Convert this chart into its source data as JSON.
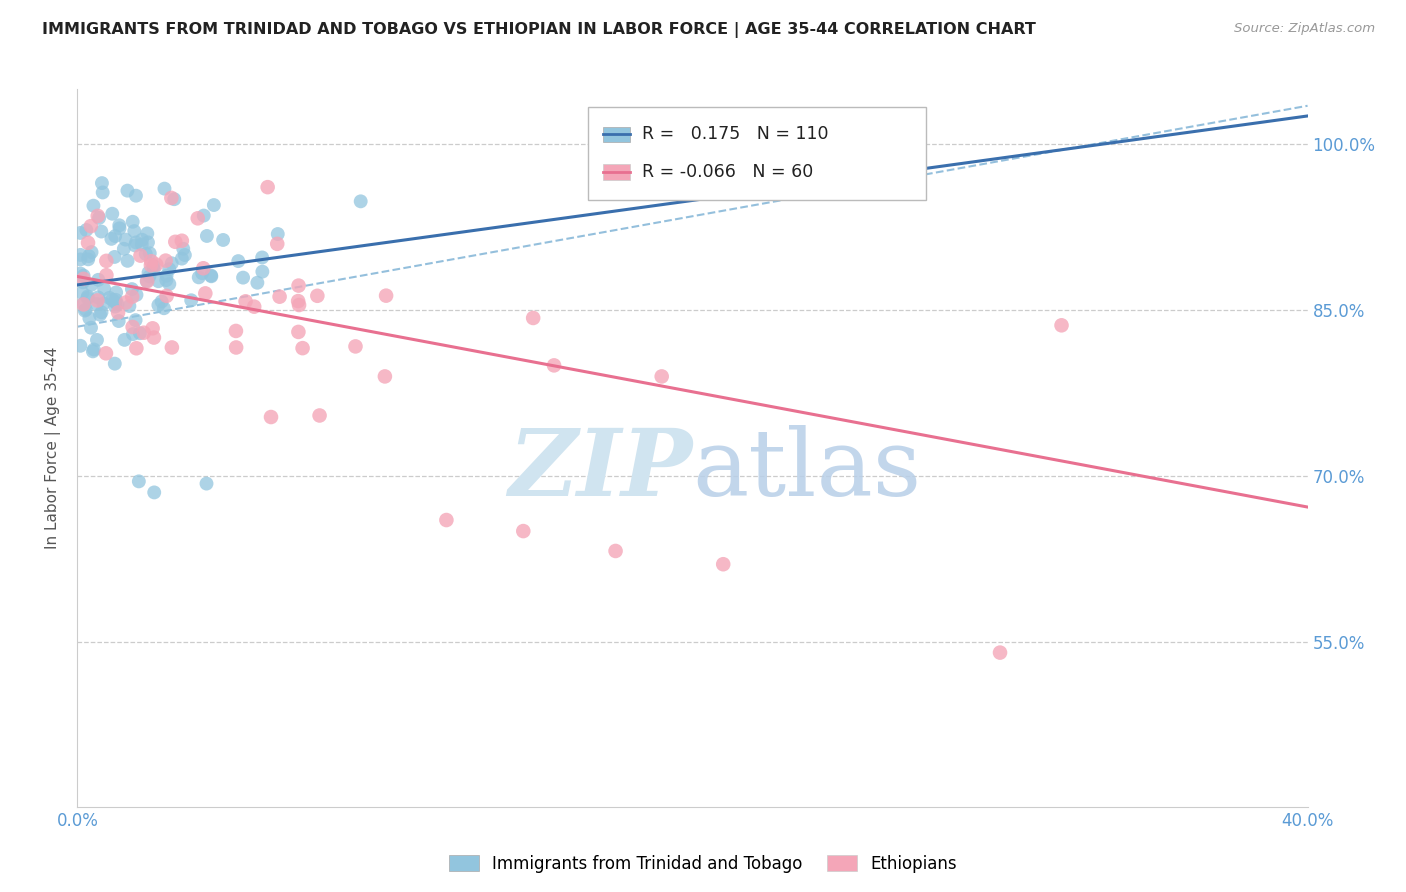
{
  "title": "IMMIGRANTS FROM TRINIDAD AND TOBAGO VS ETHIOPIAN IN LABOR FORCE | AGE 35-44 CORRELATION CHART",
  "source": "Source: ZipAtlas.com",
  "ylabel": "In Labor Force | Age 35-44",
  "xlim": [
    0.0,
    0.4
  ],
  "ylim": [
    0.4,
    1.05
  ],
  "yticks_right": [
    0.55,
    0.7,
    0.85,
    1.0
  ],
  "ytick_labels_right": [
    "55.0%",
    "70.0%",
    "85.0%",
    "100.0%"
  ],
  "legend_r_blue": "0.175",
  "legend_n_blue": "110",
  "legend_r_pink": "-0.066",
  "legend_n_pink": "60",
  "color_blue": "#92c5de",
  "color_pink": "#f4a6b8",
  "color_blue_line": "#3a6fad",
  "color_pink_line": "#e87090",
  "color_dashed": "#7ab0d4",
  "tick_label_color": "#5b9bd5",
  "ylabel_color": "#555555",
  "title_color": "#222222",
  "source_color": "#999999",
  "watermark_color": "#d0e4f0"
}
